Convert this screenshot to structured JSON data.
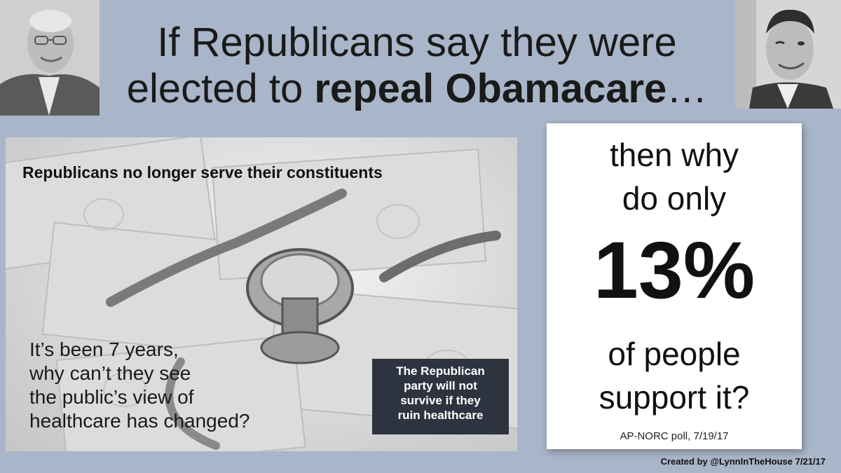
{
  "headline": {
    "prefix": "If Republicans say they were elected to ",
    "bold": "repeal Obamacare",
    "suffix": "…"
  },
  "panel": {
    "subhead": "Republicans no longer serve their constituents",
    "body_lines": [
      "It’s been 7 years,",
      "why can’t they see",
      "the public’s view of",
      "healthcare has changed?"
    ],
    "box_lines": [
      "The Republican",
      "party will not",
      "survive if they",
      "ruin healthcare"
    ],
    "background_image": "stethoscope-on-dollar-bills"
  },
  "card": {
    "top_lines": [
      "then why",
      "do only"
    ],
    "percent": "13%",
    "bottom_lines": [
      "of people",
      "support it?"
    ],
    "source": "AP-NORC poll, 7/19/17"
  },
  "credit": "Created by  @LynnInTheHouse   7/21/17",
  "portraits": {
    "left": "man-with-glasses-photo",
    "right": "man-winking-photo"
  },
  "colors": {
    "background": "#a9b6c9",
    "dark_box": "#2d3440",
    "card": "#ffffff"
  }
}
